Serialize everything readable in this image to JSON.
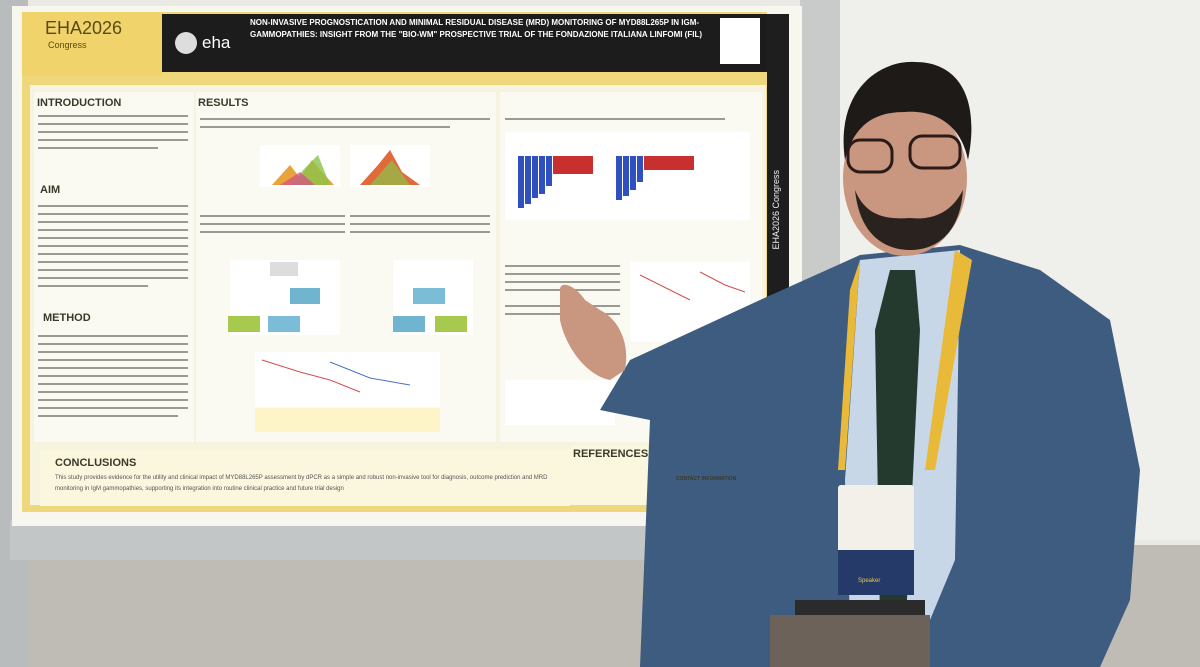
{
  "poster": {
    "logo_event": "EHA2026",
    "logo_sub": "Congress",
    "society": "eha",
    "title": "NON-INVASIVE PROGNOSTICATION AND MINIMAL RESIDUAL DISEASE (MRD) MONITORING OF MYD88L265P IN IGM-GAMMOPATHIES: INSIGHT FROM THE \"BIO-WM\" PROSPECTIVE TRIAL OF THE FONDAZIONE ITALIANA LINFOMI (FIL)",
    "sections": {
      "introduction": "INTRODUCTION",
      "aim": "AIM",
      "method": "METHOD",
      "results": "RESULTS",
      "conclusions": "CONCLUSIONS",
      "references": "REFERENCES",
      "contact": "CONTACT INFORMATION"
    },
    "conclusion_text": "This study provides evidence for the utility and clinical impact of MYD88L265P assessment by dPCR as a simple and robust non-invasive tool for diagnosis, outcome prediction and MRD monitoring in IgM gammopathies, supporting its integration into routine clinical practice and future trial design",
    "side_banner": "EHA2026 Congress"
  },
  "badge": {
    "role": "Speaker"
  }
}
